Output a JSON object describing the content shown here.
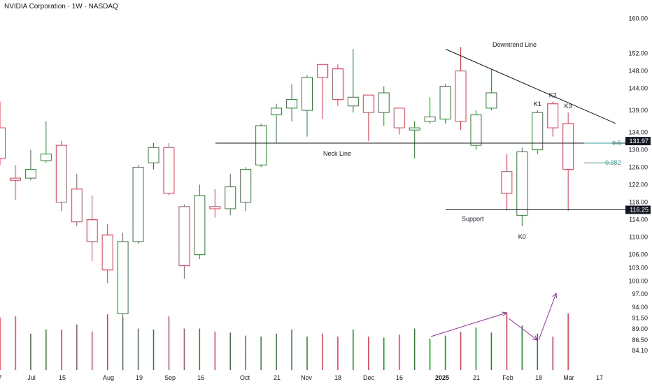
{
  "header": {
    "title": "NVIDIA Corporation · 1W · NASDAQ"
  },
  "colors": {
    "up": "#2e7d32",
    "down": "#e53950",
    "fib": "#26a69a",
    "arrow": "#9c27b0",
    "line": "#131722"
  },
  "chart_data": {
    "type": "candlestick",
    "title": "NVIDIA Corporation · 1W · NASDAQ",
    "ylim": [
      82,
      162
    ],
    "volume_ylim": [
      0,
      100
    ],
    "y_ticks": [
      "84.10",
      "86.50",
      "89.00",
      "91.50",
      "94.00",
      "97.00",
      "100.00",
      "103.00",
      "106.00",
      "110.00",
      "114.00",
      "118.00",
      "122.00",
      "126.00",
      "130.00",
      "134.00",
      "139.00",
      "144.00",
      "148.00",
      "152.00",
      "160.00"
    ],
    "x_ticks": [
      "7",
      "Jul",
      "15",
      "Aug",
      "19",
      "Sep",
      "16",
      "Oct",
      "21",
      "Nov",
      "18",
      "Dec",
      "16",
      "2025",
      "21",
      "Feb",
      "18",
      "Mar",
      "17"
    ],
    "candles": [
      {
        "o": 135.0,
        "h": 141.0,
        "l": 126.5,
        "c": 128.0,
        "v": 52
      },
      {
        "o": 123.5,
        "h": 126.5,
        "l": 118.5,
        "c": 123.0,
        "v": 53
      },
      {
        "o": 123.5,
        "h": 130.0,
        "l": 123.0,
        "c": 125.5,
        "v": 36
      },
      {
        "o": 127.5,
        "h": 136.5,
        "l": 127.0,
        "c": 129.0,
        "v": 40
      },
      {
        "o": 131.0,
        "h": 132.0,
        "l": 116.0,
        "c": 118.0,
        "v": 40
      },
      {
        "o": 121.0,
        "h": 124.5,
        "l": 112.5,
        "c": 113.5,
        "v": 45
      },
      {
        "o": 114.0,
        "h": 119.5,
        "l": 104.5,
        "c": 109.0,
        "v": 38
      },
      {
        "o": 110.5,
        "h": 113.0,
        "l": 99.5,
        "c": 102.5,
        "v": 55
      },
      {
        "o": 92.5,
        "h": 111.0,
        "l": 90.5,
        "c": 109.0,
        "v": 52
      },
      {
        "o": 109.0,
        "h": 126.5,
        "l": 108.5,
        "c": 126.0,
        "v": 41
      },
      {
        "o": 127.0,
        "h": 131.5,
        "l": 125.5,
        "c": 130.5,
        "v": 40
      },
      {
        "o": 130.5,
        "h": 131.5,
        "l": 119.5,
        "c": 120.0,
        "v": 53
      },
      {
        "o": 117.0,
        "h": 117.5,
        "l": 100.5,
        "c": 103.5,
        "v": 41
      },
      {
        "o": 106.0,
        "h": 122.0,
        "l": 105.0,
        "c": 119.5,
        "v": 41
      },
      {
        "o": 117.0,
        "h": 121.0,
        "l": 114.5,
        "c": 116.5,
        "v": 38
      },
      {
        "o": 116.5,
        "h": 124.5,
        "l": 115.0,
        "c": 121.5,
        "v": 37
      },
      {
        "o": 118.0,
        "h": 126.0,
        "l": 116.0,
        "c": 125.5,
        "v": 34
      },
      {
        "o": 126.5,
        "h": 136.0,
        "l": 126.0,
        "c": 135.5,
        "v": 33
      },
      {
        "o": 138.0,
        "h": 140.5,
        "l": 131.5,
        "c": 139.5,
        "v": 36
      },
      {
        "o": 139.5,
        "h": 145.0,
        "l": 136.5,
        "c": 141.5,
        "v": 40
      },
      {
        "o": 139.0,
        "h": 147.0,
        "l": 133.0,
        "c": 146.5,
        "v": 33
      },
      {
        "o": 149.5,
        "h": 149.5,
        "l": 137.0,
        "c": 146.5,
        "v": 36
      },
      {
        "o": 148.5,
        "h": 149.5,
        "l": 140.0,
        "c": 141.5,
        "v": 33
      },
      {
        "o": 140.0,
        "h": 153.0,
        "l": 138.5,
        "c": 142.0,
        "v": 40
      },
      {
        "o": 142.5,
        "h": 142.5,
        "l": 132.0,
        "c": 138.5,
        "v": 33
      },
      {
        "o": 138.5,
        "h": 144.5,
        "l": 135.5,
        "c": 143.0,
        "v": 32
      },
      {
        "o": 139.5,
        "h": 139.5,
        "l": 133.5,
        "c": 135.0,
        "v": 35
      },
      {
        "o": 134.5,
        "h": 136.5,
        "l": 128.0,
        "c": 135.0,
        "v": 41
      },
      {
        "o": 136.5,
        "h": 142.0,
        "l": 136.0,
        "c": 137.5,
        "v": 31
      },
      {
        "o": 137.0,
        "h": 145.0,
        "l": 136.0,
        "c": 144.5,
        "v": 34
      },
      {
        "o": 148.0,
        "h": 153.5,
        "l": 134.5,
        "c": 136.5,
        "v": 38
      },
      {
        "o": 131.0,
        "h": 139.0,
        "l": 130.0,
        "c": 138.0,
        "v": 42
      },
      {
        "o": 139.5,
        "h": 148.5,
        "l": 139.0,
        "c": 143.0,
        "v": 37
      },
      {
        "o": 125.0,
        "h": 129.0,
        "l": 116.0,
        "c": 120.0,
        "v": 57
      },
      {
        "o": 115.0,
        "h": 130.5,
        "l": 112.5,
        "c": 129.5,
        "v": 44
      },
      {
        "o": 130.0,
        "h": 139.0,
        "l": 129.0,
        "c": 138.5,
        "v": 36
      },
      {
        "o": 140.5,
        "h": 141.0,
        "l": 133.0,
        "c": 135.0,
        "v": 33
      },
      {
        "o": 136.0,
        "h": 138.5,
        "l": 116.0,
        "c": 125.5,
        "v": 56
      }
    ],
    "lines": {
      "neck_line": {
        "label": "Neck Line",
        "y": 131.5
      },
      "support": {
        "label": "Support",
        "y": 116.25
      },
      "downtrend": {
        "label": "Downtrend Line",
        "from": 153.0,
        "to": 136.0
      }
    },
    "fib_levels": [
      {
        "label": "0.5",
        "y": 131.5
      },
      {
        "label": "0.382",
        "y": 127.0
      }
    ],
    "price_tags": [
      {
        "label": "131.97",
        "y": 131.97
      },
      {
        "label": "116.25",
        "y": 116.25
      }
    ],
    "candle_labels": [
      {
        "label": "K0",
        "index": 34
      },
      {
        "label": "K1",
        "index": 35
      },
      {
        "label": "K2",
        "index": 36
      },
      {
        "label": "K3",
        "index": 37
      }
    ]
  }
}
